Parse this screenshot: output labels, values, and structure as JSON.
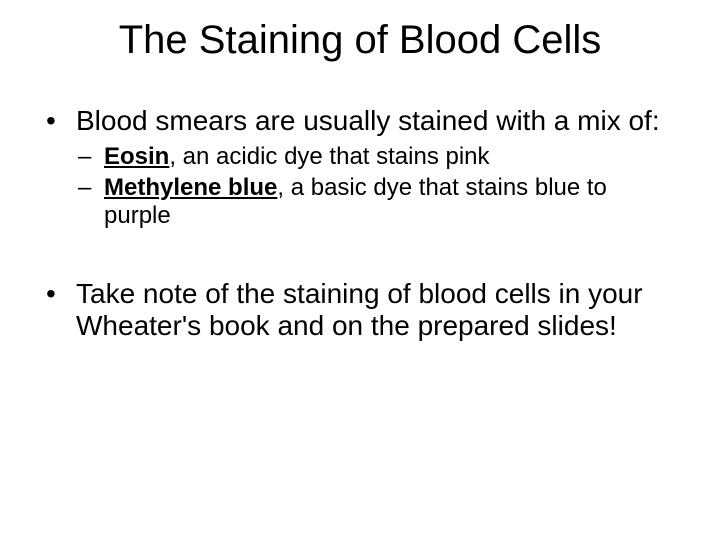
{
  "slide": {
    "type": "document",
    "background_color": "#ffffff",
    "text_color": "#000000",
    "font_family": "Arial",
    "title": {
      "text": "The Staining of Blood Cells",
      "fontsize": 40,
      "align": "center",
      "weight": "normal"
    },
    "bullets": {
      "level1_fontsize": 28,
      "level2_fontsize": 24,
      "items": [
        {
          "text": "Blood smears are usually stained with a mix of:",
          "sub": [
            {
              "strong": "Eosin",
              "rest": ", an acidic dye that stains pink"
            },
            {
              "strong": "Methylene blue",
              "rest": ", a basic dye that stains blue to purple"
            }
          ]
        },
        {
          "text": "Take note of the staining of blood cells in your Wheater's book and on the prepared slides!"
        }
      ]
    }
  }
}
